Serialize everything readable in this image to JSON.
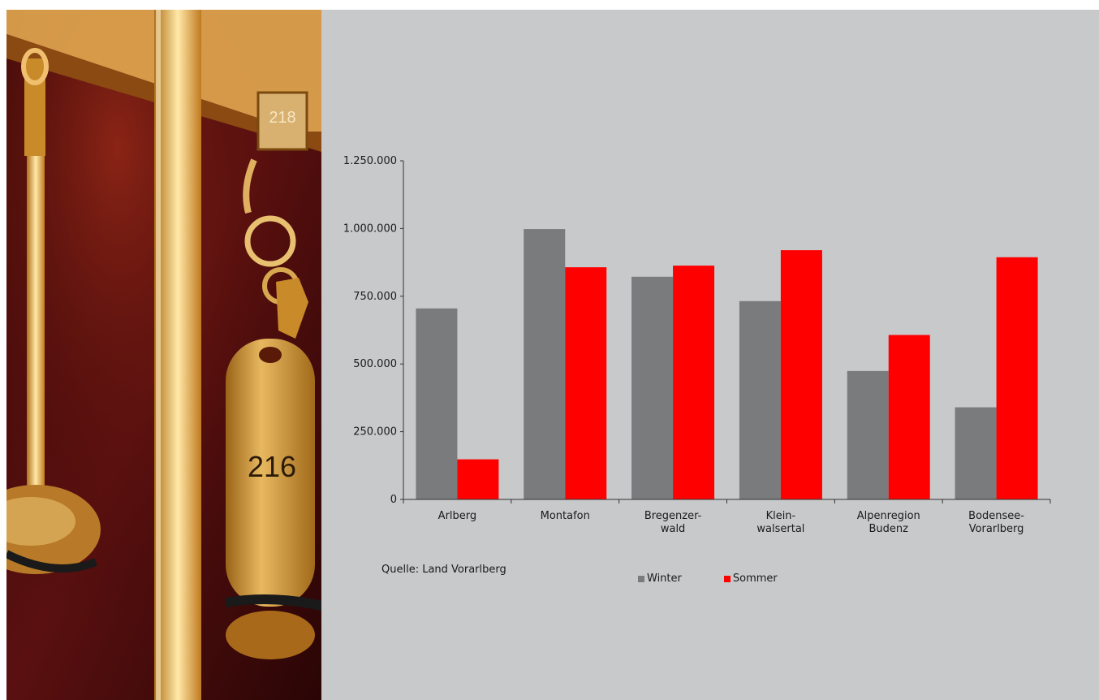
{
  "colors": {
    "winter": "#7a7b7d",
    "sommer": "#ff0000",
    "panel": "#c8c9cb"
  },
  "photo": {
    "key_tag_number": "216",
    "hook_plate_number": "218"
  },
  "source": "Quelle: Land Vorarlberg",
  "chart_data": {
    "type": "bar",
    "categories": [
      [
        "Arlberg"
      ],
      [
        "Montafon"
      ],
      [
        "Bregenzer-",
        "wald"
      ],
      [
        "Klein-",
        "walsertal"
      ],
      [
        "Alpenregion",
        "Budenz"
      ],
      [
        "Bodensee-",
        "Vorarlberg"
      ]
    ],
    "series": [
      {
        "name": "Winter",
        "color": "#7a7b7d",
        "values": [
          705000,
          998000,
          822000,
          732000,
          474000,
          340000
        ]
      },
      {
        "name": "Sommer",
        "color": "#ff0000",
        "values": [
          148000,
          857000,
          863000,
          920000,
          607000,
          894000
        ]
      }
    ],
    "ylim": [
      0,
      1250000
    ],
    "yticks": [
      0,
      250000,
      500000,
      750000,
      1000000,
      1250000
    ],
    "ytick_labels": [
      "0",
      "250.000",
      "500.000",
      "750.000",
      "1.000.000",
      "1.250.000"
    ],
    "grid": false,
    "legend_position": "bottom"
  }
}
